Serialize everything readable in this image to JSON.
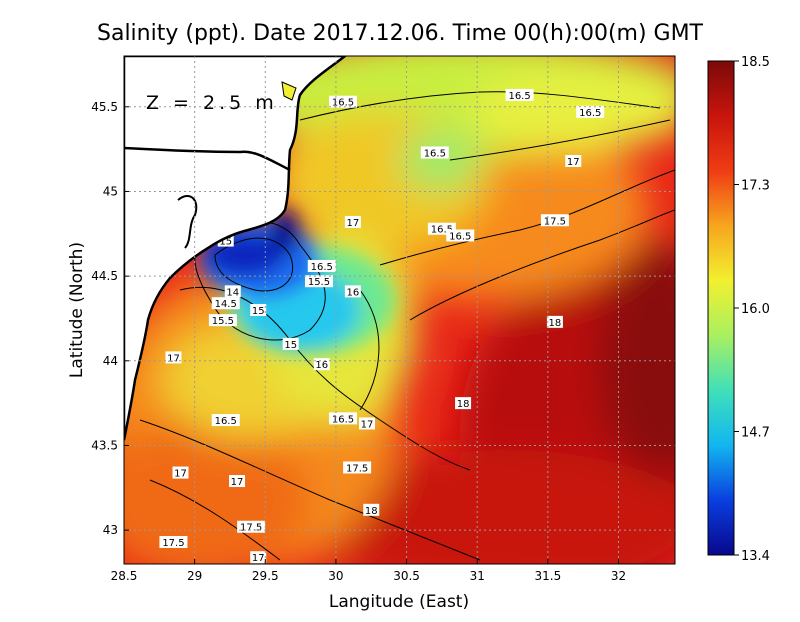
{
  "chart_data": {
    "type": "heatmap",
    "title": "Salinity (ppt). Date 2017.12.06. Time 00(h):00(m) GMT",
    "xlabel": "Langitude (East)",
    "ylabel": "Latitude (North)",
    "annotation": "Z = 2.5 m",
    "xlim": [
      28.5,
      32.4
    ],
    "ylim": [
      42.8,
      45.8
    ],
    "x_ticks": [
      "28.5",
      "29",
      "29.5",
      "30",
      "30.5",
      "31",
      "31.5",
      "32"
    ],
    "y_ticks": [
      "43",
      "43.5",
      "44",
      "44.5",
      "45",
      "45.5"
    ],
    "grid": true,
    "colorbar": {
      "min": 13.4,
      "max": 18.5,
      "tick_labels": [
        "18.5",
        "17.3",
        "16.0",
        "14.7",
        "13.4"
      ],
      "colors": [
        "#08088c",
        "#0a3fe0",
        "#12b6f0",
        "#40e0b8",
        "#a8f060",
        "#f2f030",
        "#f7a51e",
        "#f03c14",
        "#c8140c",
        "#7c0a0a"
      ]
    },
    "contour_labels": [
      {
        "text": "16.5",
        "x": 30.05,
        "y": 45.53
      },
      {
        "text": "16.5",
        "x": 31.3,
        "y": 45.57
      },
      {
        "text": "16.5",
        "x": 31.8,
        "y": 45.47
      },
      {
        "text": "16.5",
        "x": 30.7,
        "y": 45.23
      },
      {
        "text": "17",
        "x": 31.68,
        "y": 45.18
      },
      {
        "text": "17",
        "x": 30.12,
        "y": 44.82
      },
      {
        "text": "16.5",
        "x": 30.75,
        "y": 44.78
      },
      {
        "text": "16.5",
        "x": 30.88,
        "y": 44.74
      },
      {
        "text": "17.5",
        "x": 31.55,
        "y": 44.83
      },
      {
        "text": "15",
        "x": 29.22,
        "y": 44.71
      },
      {
        "text": "16.5",
        "x": 29.9,
        "y": 44.56
      },
      {
        "text": "15.5",
        "x": 29.88,
        "y": 44.47
      },
      {
        "text": "16",
        "x": 30.12,
        "y": 44.41
      },
      {
        "text": "14",
        "x": 29.27,
        "y": 44.41
      },
      {
        "text": "14.5",
        "x": 29.22,
        "y": 44.34
      },
      {
        "text": "15",
        "x": 29.45,
        "y": 44.3
      },
      {
        "text": "15.5",
        "x": 29.2,
        "y": 44.24
      },
      {
        "text": "18",
        "x": 31.55,
        "y": 44.23
      },
      {
        "text": "15",
        "x": 29.68,
        "y": 44.1
      },
      {
        "text": "17",
        "x": 28.85,
        "y": 44.02
      },
      {
        "text": "16",
        "x": 29.9,
        "y": 43.98
      },
      {
        "text": "18",
        "x": 30.9,
        "y": 43.75
      },
      {
        "text": "16.5",
        "x": 29.22,
        "y": 43.65
      },
      {
        "text": "16.5",
        "x": 30.05,
        "y": 43.66
      },
      {
        "text": "17",
        "x": 30.22,
        "y": 43.63
      },
      {
        "text": "17.5",
        "x": 30.15,
        "y": 43.37
      },
      {
        "text": "17",
        "x": 28.9,
        "y": 43.34
      },
      {
        "text": "17",
        "x": 29.3,
        "y": 43.29
      },
      {
        "text": "18",
        "x": 30.25,
        "y": 43.12
      },
      {
        "text": "17.5",
        "x": 29.4,
        "y": 43.02
      },
      {
        "text": "17.5",
        "x": 28.85,
        "y": 42.93
      },
      {
        "text": "17",
        "x": 29.45,
        "y": 42.84
      }
    ],
    "low_centers": [
      {
        "x": 29.32,
        "y": 44.62,
        "value": 13.5
      },
      {
        "x": 29.6,
        "y": 44.32,
        "value": 15.0
      }
    ]
  }
}
